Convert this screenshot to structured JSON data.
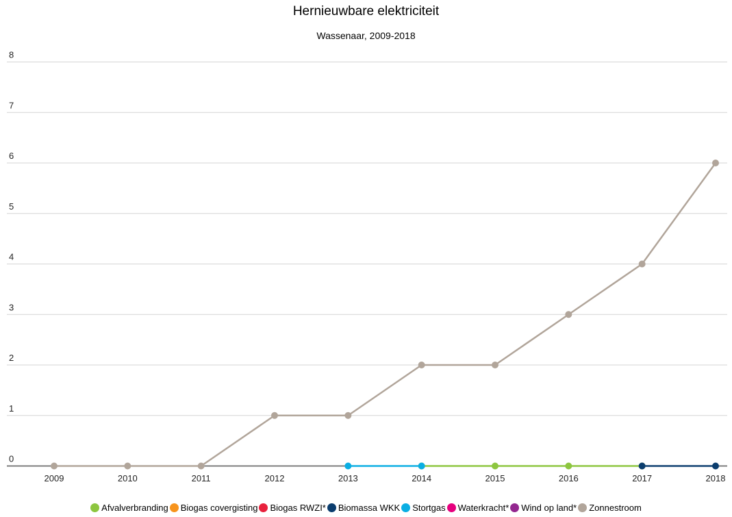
{
  "chart_data": {
    "type": "line",
    "title": "Hernieuwbare elektriciteit",
    "subtitle": "Wassenaar, 2009-2018",
    "xlabel": "",
    "ylabel": "",
    "x": [
      "2009",
      "2010",
      "2011",
      "2012",
      "2013",
      "2014",
      "2015",
      "2016",
      "2017",
      "2018"
    ],
    "yticks": [
      "0",
      "1",
      "2",
      "3",
      "4",
      "5",
      "6",
      "7",
      "8"
    ],
    "ylim": [
      0,
      8
    ],
    "grid": true,
    "legend_position": "bottom",
    "series": [
      {
        "name": "Afvalverbranding",
        "color": "#8dc63f",
        "values": [
          null,
          null,
          null,
          null,
          null,
          0,
          0,
          0,
          0,
          null
        ]
      },
      {
        "name": "Biogas covergisting",
        "color": "#f7941d",
        "values": [
          null,
          null,
          null,
          null,
          null,
          null,
          null,
          null,
          null,
          null
        ]
      },
      {
        "name": "Biogas RWZI*",
        "color": "#e8213d",
        "values": [
          null,
          null,
          null,
          null,
          null,
          null,
          null,
          null,
          null,
          null
        ]
      },
      {
        "name": "Biomassa WKK",
        "color": "#0b3d6e",
        "values": [
          null,
          null,
          null,
          null,
          null,
          null,
          null,
          null,
          0,
          0
        ]
      },
      {
        "name": "Stortgas",
        "color": "#0aaee3",
        "values": [
          null,
          null,
          null,
          null,
          0,
          0,
          null,
          null,
          null,
          null
        ]
      },
      {
        "name": "Waterkracht*",
        "color": "#e6007e",
        "values": [
          null,
          null,
          null,
          null,
          null,
          null,
          null,
          null,
          null,
          null
        ]
      },
      {
        "name": "Wind op land*",
        "color": "#93278f",
        "values": [
          null,
          null,
          null,
          null,
          null,
          null,
          null,
          null,
          null,
          null
        ]
      },
      {
        "name": "Zonnestroom",
        "color": "#b1a59a",
        "values": [
          0,
          0,
          0,
          1,
          1,
          2,
          2,
          3,
          4,
          6
        ]
      }
    ]
  }
}
